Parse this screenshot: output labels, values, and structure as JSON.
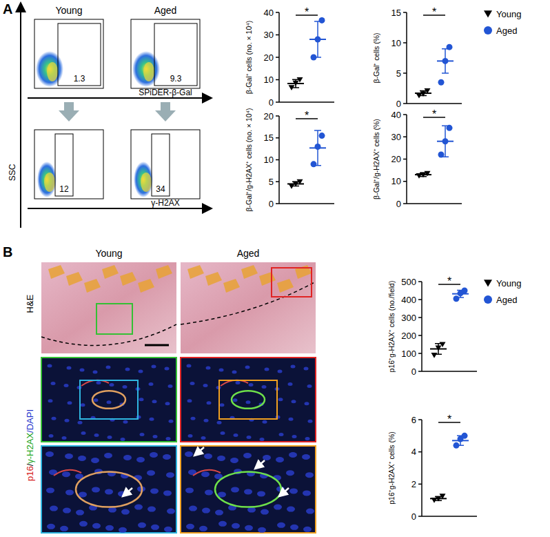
{
  "figure": {
    "panel_labels": [
      "A",
      "B"
    ],
    "flow": {
      "columns": [
        "Young",
        "Aged"
      ],
      "x_labels": [
        "SPiDER-β-Gal",
        "γ-H2AX"
      ],
      "y_label": "SSC",
      "gates": [
        [
          1.3,
          9.3
        ],
        [
          12,
          34
        ]
      ]
    },
    "histology": {
      "columns": [
        "Young",
        "Aged"
      ],
      "row_label": "H&E",
      "stain": [
        "p16",
        "/",
        "γ-H2AX",
        "/",
        "DAPI"
      ]
    }
  },
  "chart_data": [
    {
      "type": "dot",
      "y_label": "β-Gal⁺ cells (no. × 10⁴)",
      "ylim": [
        0,
        40
      ],
      "yticks": [
        0,
        10,
        20,
        30,
        40
      ],
      "tick_labels": "y",
      "annotations": [
        "*"
      ],
      "series": [
        {
          "name": "Young",
          "color": "#000000",
          "marker": "triangle-down",
          "values": [
            6.5,
            8.5,
            10
          ],
          "mean": 8.3,
          "error": 1.8
        },
        {
          "name": "Aged",
          "color": "#2255d4",
          "marker": "circle",
          "values": [
            20,
            28,
            36.5
          ],
          "mean": 28,
          "error": 8
        }
      ]
    },
    {
      "type": "dot",
      "y_label": "β-Gal⁺ cells (%)",
      "ylim": [
        0,
        15
      ],
      "yticks": [
        0,
        5,
        10,
        15
      ],
      "tick_labels": "y",
      "annotations": [
        "*"
      ],
      "legend": "right",
      "series": [
        {
          "name": "Young",
          "color": "#000000",
          "marker": "triangle-down",
          "values": [
            1.3,
            1.6,
            2.1
          ],
          "mean": 1.7,
          "error": 0.4
        },
        {
          "name": "Aged",
          "color": "#2255d4",
          "marker": "circle",
          "values": [
            3.5,
            7,
            9.3
          ],
          "mean": 7,
          "error": 2
        }
      ]
    },
    {
      "type": "dot",
      "y_label": "β-Gal⁺/g-H2AX⁺ cells (no. × 10⁴)",
      "ylim": [
        0,
        20
      ],
      "yticks": [
        0,
        5,
        10,
        15,
        20
      ],
      "tick_labels": "y",
      "annotations": [
        "*"
      ],
      "series": [
        {
          "name": "Young",
          "color": "#000000",
          "marker": "triangle-down",
          "values": [
            4,
            4.5,
            5
          ],
          "mean": 4.5,
          "error": 0.5
        },
        {
          "name": "Aged",
          "color": "#2255d4",
          "marker": "circle",
          "values": [
            9,
            13,
            15.5
          ],
          "mean": 12.7,
          "error": 4
        }
      ]
    },
    {
      "type": "dot",
      "y_label": "β-Gal⁺/g-H2AX⁺ cells (%)",
      "ylim": [
        0,
        40
      ],
      "yticks": [
        0,
        10,
        20,
        30,
        40
      ],
      "tick_labels": "y",
      "annotations": [
        "*"
      ],
      "series": [
        {
          "name": "Young",
          "color": "#000000",
          "marker": "triangle-down",
          "values": [
            12.5,
            13,
            13.5
          ],
          "mean": 13,
          "error": 0.8
        },
        {
          "name": "Aged",
          "color": "#2255d4",
          "marker": "circle",
          "values": [
            22,
            28,
            34
          ],
          "mean": 28,
          "error": 7
        }
      ]
    },
    {
      "type": "dot",
      "y_label": "p16⁺g-H2AX⁺ cells (no./field)",
      "ylim": [
        0,
        500
      ],
      "yticks": [
        0,
        100,
        200,
        300,
        400,
        500
      ],
      "tick_labels": "y",
      "annotations": [
        "*"
      ],
      "legend": "right",
      "series": [
        {
          "name": "Young",
          "color": "#000000",
          "marker": "triangle-down",
          "values": [
            90,
            130,
            150
          ],
          "mean": 125,
          "error": 30
        },
        {
          "name": "Aged",
          "color": "#2255d4",
          "marker": "circle",
          "values": [
            405,
            435,
            450
          ],
          "mean": 432,
          "error": 20
        }
      ]
    },
    {
      "type": "dot",
      "y_label": "p16⁺g-H2AX⁺ cells (%)",
      "ylim": [
        0,
        6
      ],
      "yticks": [
        0,
        2,
        4,
        6
      ],
      "tick_labels": "y",
      "annotations": [
        "*"
      ],
      "series": [
        {
          "name": "Young",
          "color": "#000000",
          "marker": "triangle-down",
          "values": [
            1.0,
            1.1,
            1.25
          ],
          "mean": 1.1,
          "error": 0.12
        },
        {
          "name": "Aged",
          "color": "#2255d4",
          "marker": "circle",
          "values": [
            4.4,
            4.8,
            5.0
          ],
          "mean": 4.7,
          "error": 0.3
        }
      ]
    }
  ]
}
